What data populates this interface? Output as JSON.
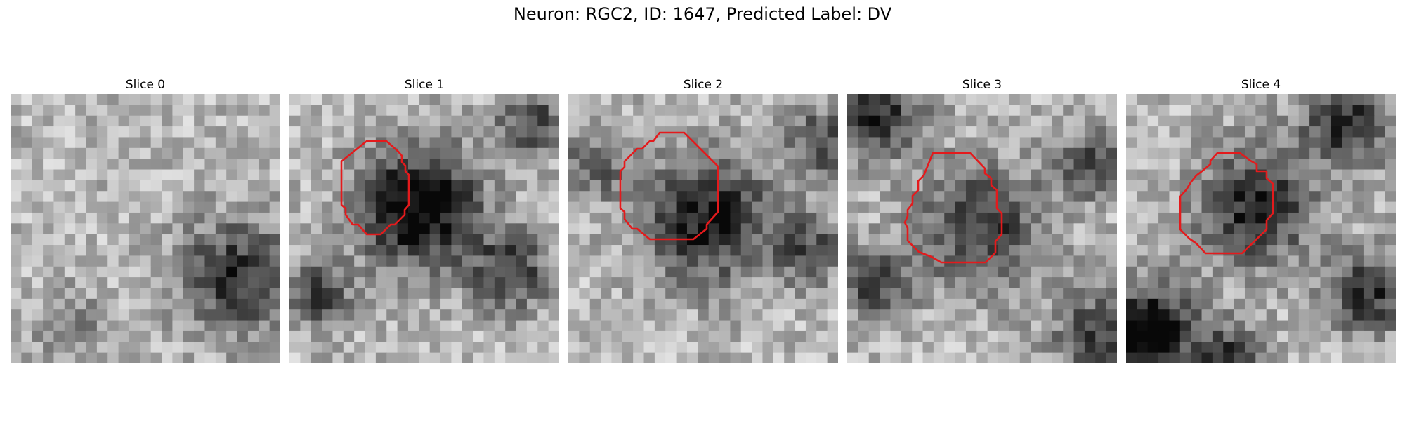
{
  "figure": {
    "title": "Neuron: RGC2, ID: 1647, Predicted Label: DV",
    "contour_color": "#e41a1c"
  },
  "panels": [
    {
      "title": "Slice 0",
      "has_contour": false
    },
    {
      "title": "Slice 1",
      "has_contour": true
    },
    {
      "title": "Slice 2",
      "has_contour": true
    },
    {
      "title": "Slice 3",
      "has_contour": true
    },
    {
      "title": "Slice 4",
      "has_contour": true
    }
  ]
}
